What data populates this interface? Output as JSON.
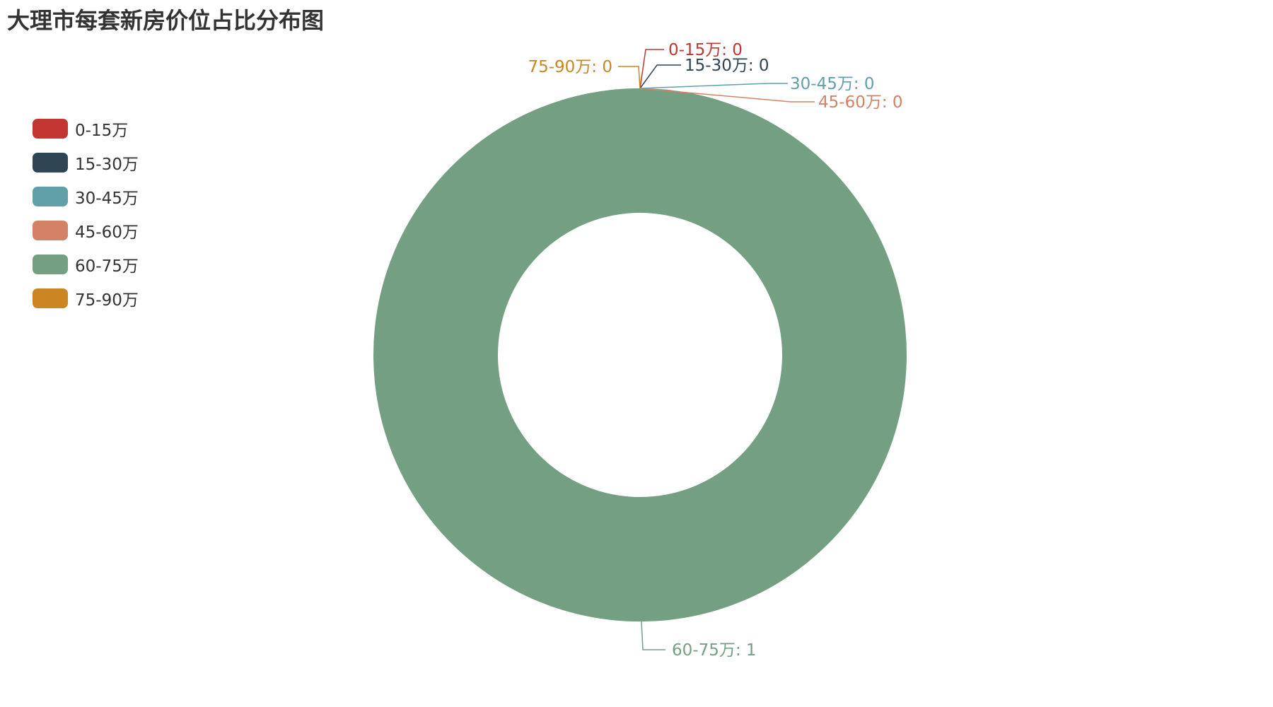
{
  "chart_data": {
    "type": "pie",
    "title": "大理市每套新房价位占比分布图",
    "donut": true,
    "legend_position": "left",
    "series": [
      {
        "name": "0-15万",
        "value": 0,
        "color": "#c23531",
        "label": "0-15万: 0"
      },
      {
        "name": "15-30万",
        "value": 0,
        "color": "#2f4554",
        "label": "15-30万: 0"
      },
      {
        "name": "30-45万",
        "value": 0,
        "color": "#61a0a8",
        "label": "30-45万: 0"
      },
      {
        "name": "45-60万",
        "value": 0,
        "color": "#d48265",
        "label": "45-60万: 0"
      },
      {
        "name": "60-75万",
        "value": 1,
        "color": "#749f83",
        "label": "60-75万: 1"
      },
      {
        "name": "75-90万",
        "value": 0,
        "color": "#ca8622",
        "label": "75-90万: 0"
      }
    ]
  }
}
